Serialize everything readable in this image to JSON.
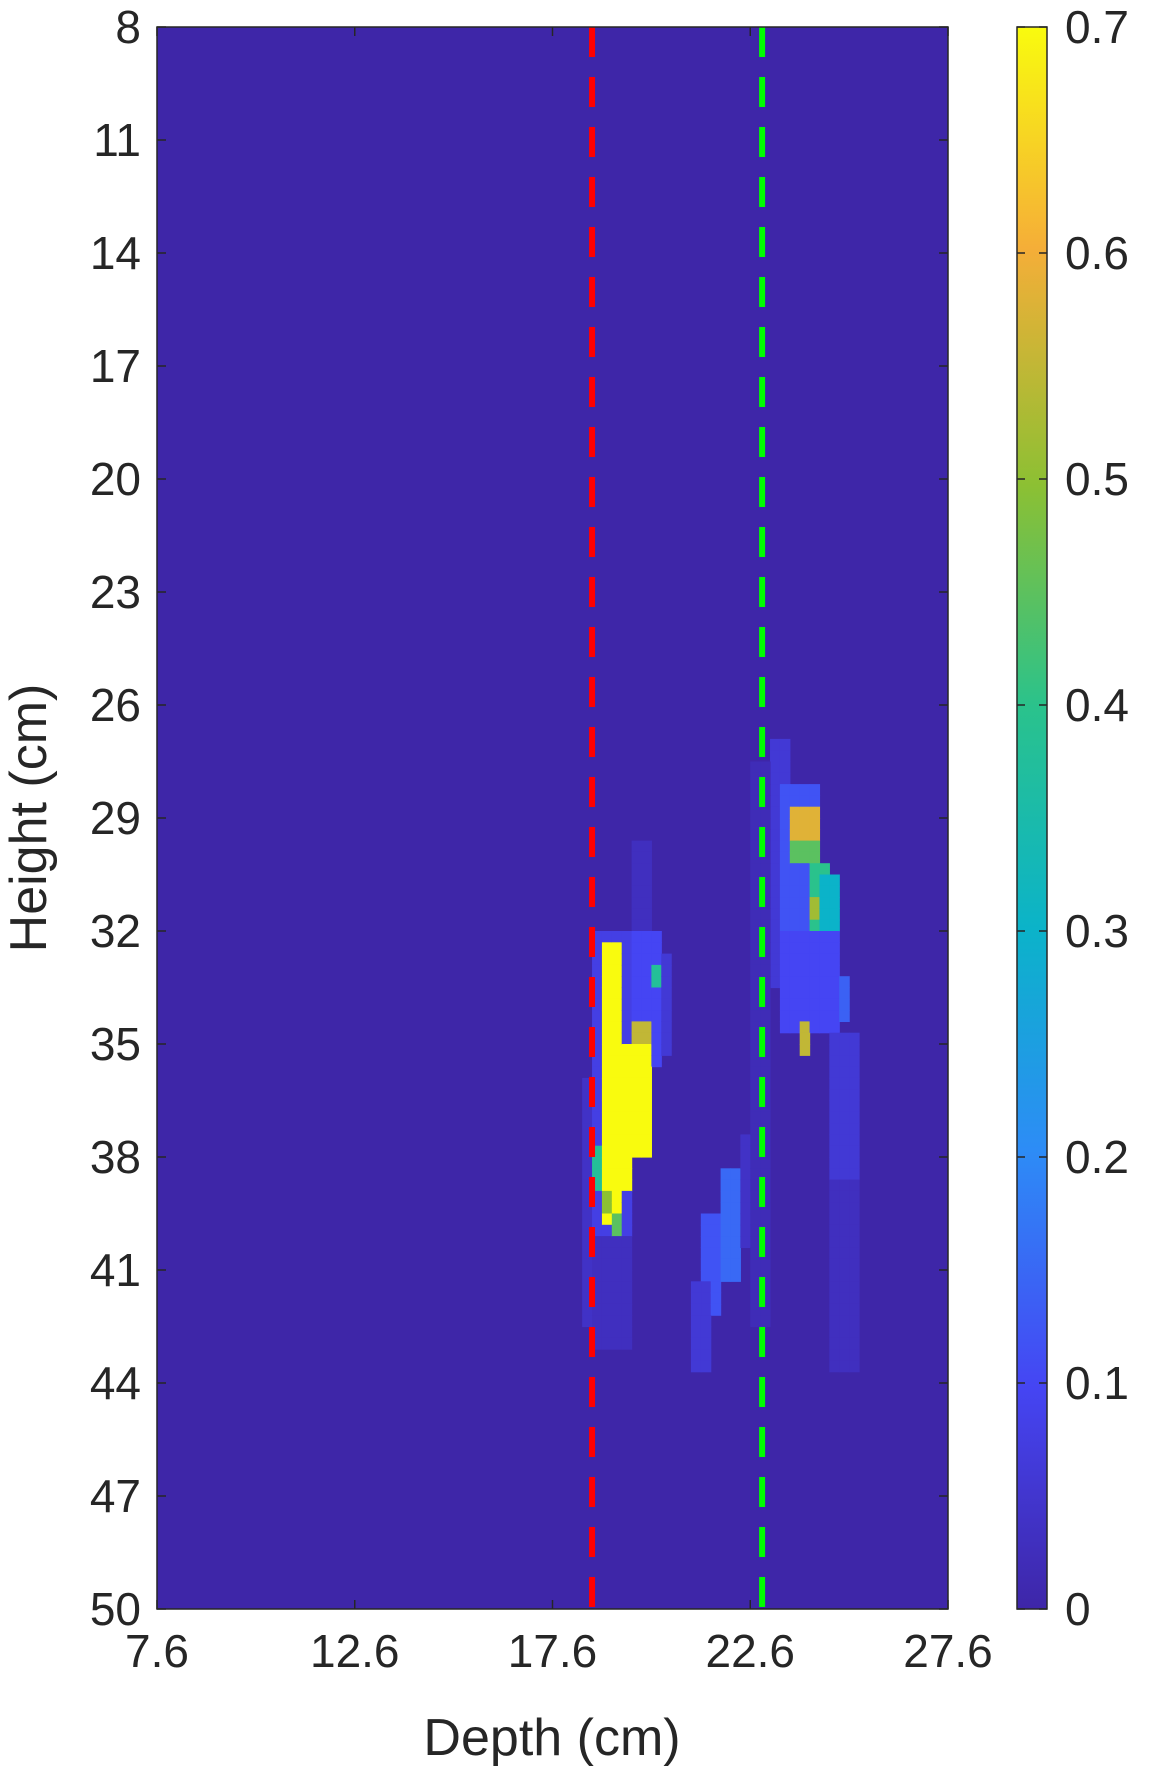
{
  "chart_data": {
    "type": "heatmap",
    "title": "",
    "xlabel": "Depth (cm)",
    "ylabel": "Height (cm)",
    "xlim": [
      7.6,
      27.6
    ],
    "ylim": [
      8,
      50
    ],
    "y_reversed": true,
    "x_ticks": [
      "7.6",
      "12.6",
      "17.6",
      "22.6",
      "27.6"
    ],
    "y_ticks": [
      "8",
      "11",
      "14",
      "17",
      "20",
      "23",
      "26",
      "29",
      "32",
      "35",
      "38",
      "41",
      "44",
      "47",
      "50"
    ],
    "colorbar": {
      "colormap": "parula",
      "range": [
        0,
        0.7
      ],
      "ticks": [
        "0",
        "0.1",
        "0.2",
        "0.3",
        "0.4",
        "0.5",
        "0.6",
        "0.7"
      ]
    },
    "reference_lines": [
      {
        "orientation": "vertical",
        "x": 18.6,
        "color": "#ff0000",
        "style": "dashed"
      },
      {
        "orientation": "vertical",
        "x": 22.9,
        "color": "#00ff00",
        "style": "dashed"
      }
    ],
    "background_value": 0,
    "cell_size": {
      "depth_cm": 0.25,
      "height_cm": 0.3
    },
    "regions": [
      {
        "depth": [
          18.3,
          18.6
        ],
        "height": [
          36.0,
          42.5
        ],
        "value": 0.04
      },
      {
        "depth": [
          18.6,
          19.7
        ],
        "height": [
          31.9,
          41.3
        ],
        "value": 0.08
      },
      {
        "depth": [
          18.7,
          19.6
        ],
        "height": [
          40.0,
          43.0
        ],
        "value": 0.03
      },
      {
        "depth": [
          19.5,
          20.0
        ],
        "height": [
          29.6,
          32.0
        ],
        "value": 0.03
      },
      {
        "depth": [
          19.6,
          20.3
        ],
        "height": [
          32.0,
          35.5
        ],
        "value": 0.1
      },
      {
        "depth": [
          20.3,
          20.6
        ],
        "height": [
          32.6,
          35.4
        ],
        "value": 0.06
      },
      {
        "depth": [
          18.9,
          19.4
        ],
        "height": [
          32.3,
          35.0
        ],
        "value": 0.7
      },
      {
        "depth": [
          18.9,
          19.7
        ],
        "height": [
          35.0,
          38.9
        ],
        "value": 0.7
      },
      {
        "depth": [
          19.7,
          20.0
        ],
        "height": [
          35.0,
          38.0
        ],
        "value": 0.7
      },
      {
        "depth": [
          18.9,
          19.4
        ],
        "height": [
          38.9,
          39.8
        ],
        "value": 0.7
      },
      {
        "depth": [
          19.0,
          19.2
        ],
        "height": [
          32.0,
          32.6
        ],
        "value": 0.6
      },
      {
        "depth": [
          19.7,
          20.0
        ],
        "height": [
          34.5,
          35.1
        ],
        "value": 0.55
      },
      {
        "depth": [
          18.6,
          18.9
        ],
        "height": [
          37.7,
          38.9
        ],
        "value": 0.38
      },
      {
        "depth": [
          18.9,
          19.2
        ],
        "height": [
          38.9,
          39.5
        ],
        "value": 0.5
      },
      {
        "depth": [
          19.0,
          19.4
        ],
        "height": [
          39.5,
          40.1
        ],
        "value": 0.45
      },
      {
        "depth": [
          20.1,
          20.4
        ],
        "height": [
          32.9,
          33.5
        ],
        "value": 0.38
      },
      {
        "depth": [
          21.4,
          21.9
        ],
        "height": [
          39.5,
          42.2
        ],
        "value": 0.12
      },
      {
        "depth": [
          21.9,
          22.3
        ],
        "height": [
          38.3,
          41.3
        ],
        "value": 0.15
      },
      {
        "depth": [
          21.2,
          21.6
        ],
        "height": [
          41.3,
          43.7
        ],
        "value": 0.06
      },
      {
        "depth": [
          22.3,
          22.6
        ],
        "height": [
          37.4,
          40.5
        ],
        "value": 0.04
      },
      {
        "depth": [
          23.1,
          23.7
        ],
        "height": [
          26.9,
          33.5
        ],
        "value": 0.06
      },
      {
        "depth": [
          23.4,
          24.3
        ],
        "height": [
          28.1,
          32.6
        ],
        "value": 0.12
      },
      {
        "depth": [
          23.7,
          24.3
        ],
        "height": [
          28.7,
          29.6
        ],
        "value": 0.58
      },
      {
        "depth": [
          23.7,
          24.3
        ],
        "height": [
          29.6,
          30.2
        ],
        "value": 0.45
      },
      {
        "depth": [
          24.0,
          24.6
        ],
        "height": [
          30.2,
          32.0
        ],
        "value": 0.4
      },
      {
        "depth": [
          24.3,
          24.9
        ],
        "height": [
          30.5,
          32.0
        ],
        "value": 0.3
      },
      {
        "depth": [
          24.0,
          24.3
        ],
        "height": [
          31.1,
          31.7
        ],
        "value": 0.52
      },
      {
        "depth": [
          23.4,
          24.9
        ],
        "height": [
          32.0,
          34.7
        ],
        "value": 0.1
      },
      {
        "depth": [
          24.9,
          25.2
        ],
        "height": [
          33.2,
          34.4
        ],
        "value": 0.14
      },
      {
        "depth": [
          23.9,
          24.2
        ],
        "height": [
          34.4,
          35.3
        ],
        "value": 0.55
      },
      {
        "depth": [
          24.5,
          25.3
        ],
        "height": [
          34.7,
          38.6
        ],
        "value": 0.06
      },
      {
        "depth": [
          24.5,
          25.3
        ],
        "height": [
          38.6,
          43.7
        ],
        "value": 0.03
      },
      {
        "depth": [
          22.6,
          23.2
        ],
        "height": [
          27.5,
          42.5
        ],
        "value": 0.02
      }
    ]
  }
}
